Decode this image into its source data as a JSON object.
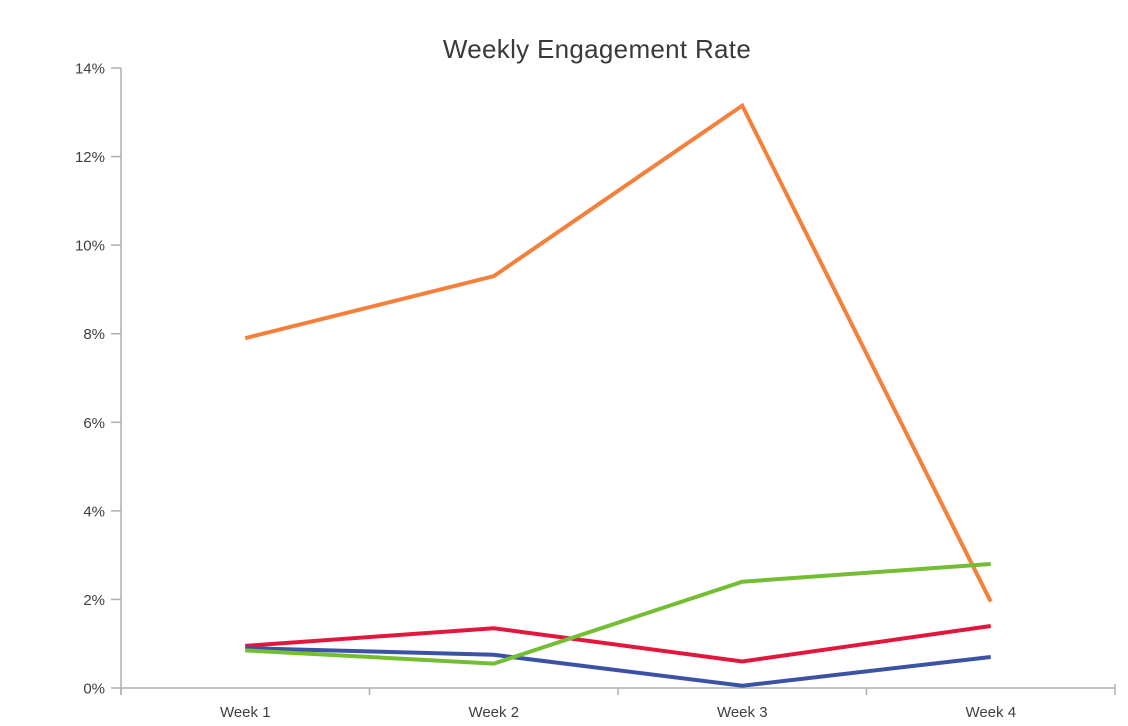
{
  "page": {
    "background": "#FFFFFF"
  },
  "chart_data": {
    "type": "line",
    "title": "Weekly Engagement Rate",
    "categories": [
      "Week 1",
      "Week 2",
      "Week 3",
      "Week 4"
    ],
    "series": [
      {
        "name": "orange-series",
        "color": "#F4803C",
        "values": [
          7.9,
          9.3,
          13.15,
          1.95
        ]
      },
      {
        "name": "red-series",
        "color": "#E2173D",
        "values": [
          0.95,
          1.35,
          0.6,
          1.4
        ]
      },
      {
        "name": "blue-series",
        "color": "#3C52A5",
        "values": [
          0.9,
          0.75,
          0.05,
          0.7
        ]
      },
      {
        "name": "green-series",
        "color": "#74BE33",
        "values": [
          0.85,
          0.55,
          2.4,
          2.8
        ]
      }
    ],
    "xlabel": "",
    "ylabel": "",
    "ylim": [
      0,
      14
    ],
    "y_ticks": [
      0,
      2,
      4,
      6,
      8,
      10,
      12,
      14
    ],
    "y_tick_labels": [
      "0%",
      "2%",
      "4%",
      "6%",
      "8%",
      "10%",
      "12%",
      "14%"
    ],
    "grid": false,
    "legend": "none",
    "axis_color": "#AFAFAF",
    "tick_label_color": "#3F3F3F",
    "title_color": "#3A3A3A"
  }
}
